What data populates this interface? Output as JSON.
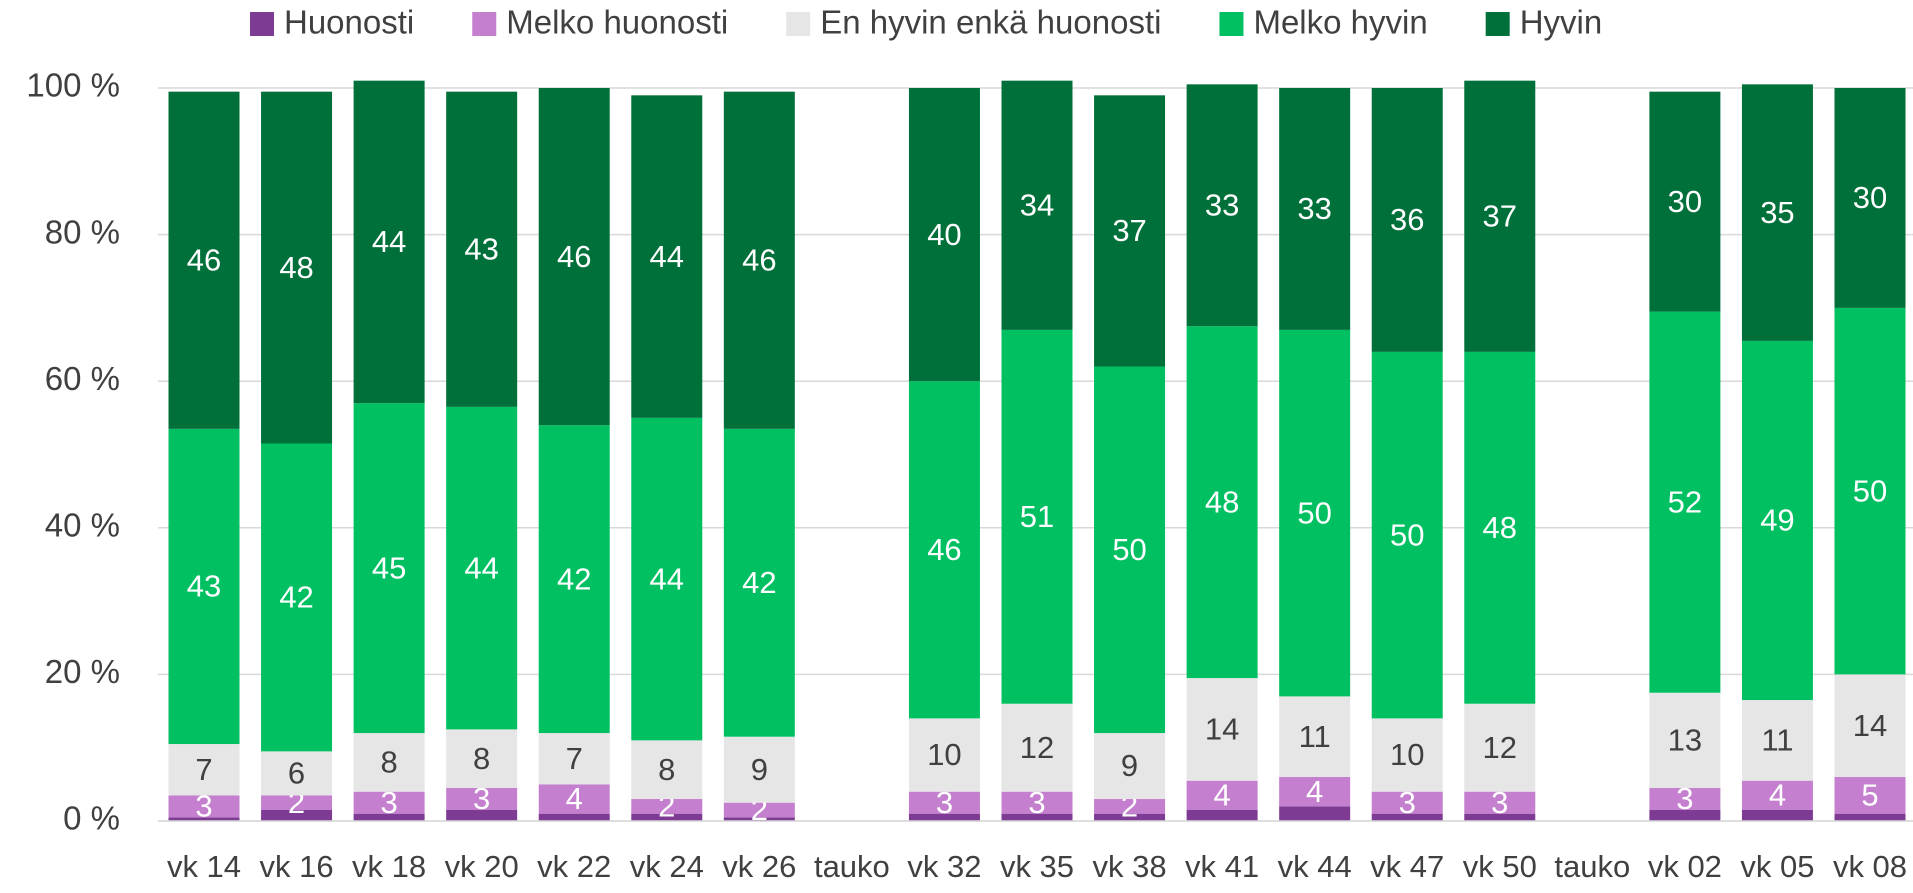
{
  "chart_data": {
    "type": "stacked_bar",
    "categories": [
      "vk 14",
      "vk 16",
      "vk 18",
      "vk 20",
      "vk 22",
      "vk 24",
      "vk 26",
      "tauko",
      "vk 32",
      "vk 35",
      "vk 38",
      "vk 41",
      "vk 44",
      "vk 47",
      "vk 50",
      "tauko",
      "vk 02",
      "vk 05",
      "vk 08"
    ],
    "series": [
      {
        "name": "Huonosti",
        "color": "#7e3b93",
        "data_labels": false,
        "values": [
          0.5,
          1.5,
          1,
          1.5,
          1,
          1,
          0.5,
          null,
          1,
          1,
          1,
          1.5,
          2,
          1,
          1,
          null,
          1.5,
          1.5,
          1
        ]
      },
      {
        "name": "Melko huonosti",
        "color": "#c57fcf",
        "data_labels": true,
        "label_color": "#ffffff",
        "values": [
          3,
          2,
          3,
          3,
          4,
          2,
          2,
          null,
          3,
          3,
          2,
          4,
          4,
          3,
          3,
          null,
          3,
          4,
          5
        ]
      },
      {
        "name": "En hyvin enkä huonosti",
        "color": "#e6e6e6",
        "data_labels": true,
        "label_color": "#404040",
        "values": [
          7,
          6,
          8,
          8,
          7,
          8,
          9,
          null,
          10,
          12,
          9,
          14,
          11,
          10,
          12,
          null,
          13,
          11,
          14
        ]
      },
      {
        "name": "Melko hyvin",
        "color": "#00c062",
        "data_labels": true,
        "label_color": "#ffffff",
        "values": [
          43,
          42,
          45,
          44,
          42,
          44,
          42,
          null,
          46,
          51,
          50,
          48,
          50,
          50,
          48,
          null,
          52,
          49,
          50
        ]
      },
      {
        "name": "Hyvin",
        "color": "#00703a",
        "data_labels": true,
        "label_color": "#ffffff",
        "values": [
          46,
          48,
          44,
          43,
          46,
          44,
          46,
          null,
          40,
          34,
          37,
          33,
          33,
          36,
          37,
          null,
          30,
          35,
          30
        ]
      }
    ],
    "ylim": [
      0,
      100
    ],
    "yticks": [
      {
        "value": 0,
        "label": "0 %"
      },
      {
        "value": 20,
        "label": "20 %"
      },
      {
        "value": 40,
        "label": "40 %"
      },
      {
        "value": 60,
        "label": "60 %"
      },
      {
        "value": 80,
        "label": "80 %"
      },
      {
        "value": 100,
        "label": "100 %"
      }
    ],
    "grid": true,
    "legend": "top"
  }
}
